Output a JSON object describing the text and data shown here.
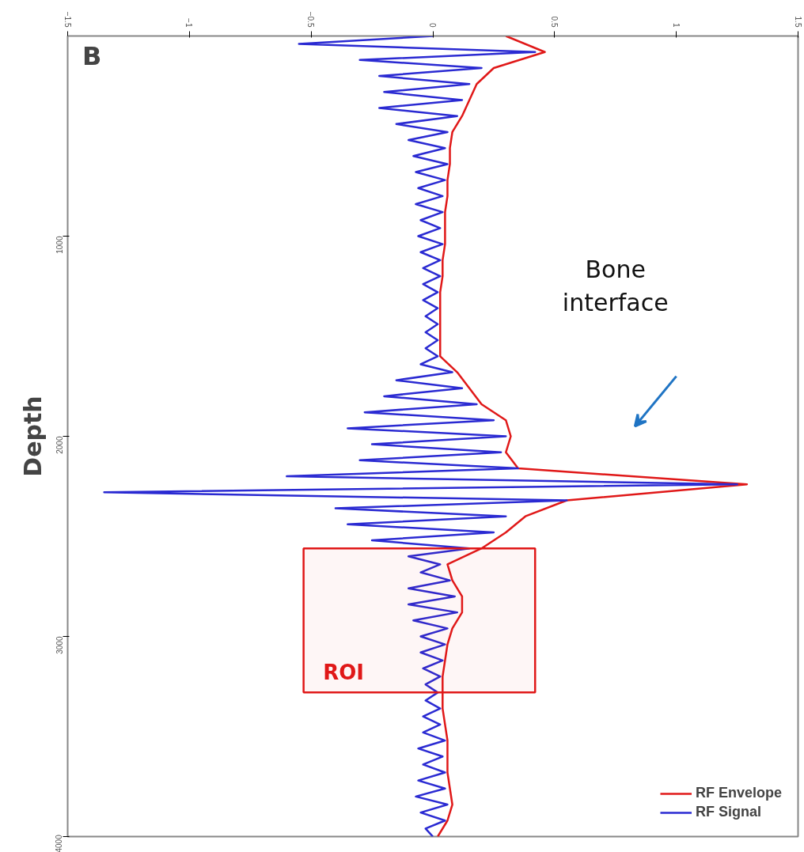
{
  "chart_data": {
    "type": "line",
    "title": "B",
    "ylabel": "Depth",
    "xlim": [
      -1.5,
      1.5
    ],
    "xticks": [
      -1.5,
      -1,
      -0.5,
      0,
      0.5,
      1,
      1.5
    ],
    "ylim": [
      4000,
      0
    ],
    "yticks": [
      1000,
      2000,
      3000,
      4000
    ],
    "grid": false,
    "legend": "bottom right",
    "line_style": "solid",
    "marker": "none",
    "series": [
      {
        "name": "RF Envelope",
        "color": "#e01818",
        "values": [
          0,
          80,
          160,
          240,
          320,
          400,
          480,
          560,
          640,
          720,
          800,
          880,
          960,
          1040,
          1120,
          1200,
          1280,
          1360,
          1440,
          1520,
          1600,
          1680,
          1760,
          1840,
          1920,
          2000,
          2080,
          2160,
          2240,
          2320,
          2400,
          2480,
          2560,
          2640,
          2720,
          2800,
          2880,
          2960,
          3040,
          3120,
          3200,
          3280,
          3360,
          3440,
          3520,
          3600,
          3680,
          3760,
          3840,
          3920,
          4000
        ],
        "x": [
          0.3,
          0.46,
          0.25,
          0.18,
          0.15,
          0.12,
          0.08,
          0.07,
          0.07,
          0.06,
          0.06,
          0.05,
          0.05,
          0.05,
          0.04,
          0.04,
          0.03,
          0.03,
          0.03,
          0.03,
          0.03,
          0.1,
          0.15,
          0.2,
          0.3,
          0.32,
          0.3,
          0.35,
          1.29,
          0.55,
          0.38,
          0.3,
          0.2,
          0.06,
          0.08,
          0.12,
          0.12,
          0.08,
          0.06,
          0.05,
          0.04,
          0.04,
          0.04,
          0.05,
          0.06,
          0.06,
          0.06,
          0.07,
          0.08,
          0.06,
          0.02
        ]
      },
      {
        "name": "RF Signal",
        "color": "#2a2ad2",
        "values": [
          0,
          40,
          80,
          120,
          160,
          200,
          240,
          280,
          320,
          360,
          400,
          440,
          480,
          520,
          560,
          600,
          640,
          680,
          720,
          760,
          800,
          840,
          880,
          920,
          960,
          1000,
          1040,
          1080,
          1120,
          1160,
          1200,
          1240,
          1280,
          1320,
          1360,
          1400,
          1440,
          1480,
          1520,
          1560,
          1600,
          1640,
          1680,
          1720,
          1760,
          1800,
          1840,
          1880,
          1920,
          1960,
          2000,
          2040,
          2080,
          2120,
          2160,
          2200,
          2240,
          2280,
          2320,
          2360,
          2400,
          2440,
          2480,
          2520,
          2560,
          2600,
          2640,
          2680,
          2720,
          2760,
          2800,
          2840,
          2880,
          2920,
          2960,
          3000,
          3040,
          3080,
          3120,
          3160,
          3200,
          3240,
          3280,
          3320,
          3360,
          3400,
          3440,
          3480,
          3520,
          3560,
          3600,
          3640,
          3680,
          3720,
          3760,
          3800,
          3840,
          3880,
          3920,
          3960,
          4000
        ],
        "x": [
          0,
          -0.55,
          0.42,
          -0.3,
          0.2,
          -0.22,
          0.15,
          -0.2,
          0.12,
          -0.22,
          0.1,
          -0.15,
          0.06,
          -0.1,
          0.05,
          -0.08,
          0.06,
          -0.07,
          0.05,
          -0.06,
          0.04,
          -0.07,
          0.04,
          -0.05,
          0.03,
          -0.06,
          0.04,
          -0.05,
          0.03,
          -0.04,
          0.03,
          -0.04,
          0.02,
          -0.04,
          0.02,
          -0.03,
          0.02,
          -0.03,
          0.02,
          -0.03,
          0.02,
          -0.05,
          0.08,
          -0.15,
          0.12,
          -0.2,
          0.18,
          -0.28,
          0.25,
          -0.35,
          0.3,
          -0.25,
          0.28,
          -0.3,
          0.35,
          -0.6,
          1.25,
          -1.35,
          0.55,
          -0.4,
          0.3,
          -0.35,
          0.25,
          -0.25,
          0.15,
          -0.1,
          0.03,
          -0.05,
          0.07,
          -0.1,
          0.09,
          -0.1,
          0.1,
          -0.08,
          0.06,
          -0.05,
          0.05,
          -0.05,
          0.04,
          -0.04,
          0.03,
          -0.03,
          0.02,
          -0.03,
          0.03,
          -0.04,
          0.03,
          -0.04,
          0.05,
          -0.06,
          0.04,
          -0.04,
          0.05,
          -0.06,
          0.05,
          -0.07,
          0.06,
          -0.05,
          0.05,
          -0.03,
          0
        ]
      }
    ],
    "bands": [
      {
        "axis": "y",
        "from": 2560,
        "to": 3280,
        "label": "ROI",
        "color": "#e01818"
      }
    ],
    "annotations": [
      "Bone interface"
    ]
  }
}
